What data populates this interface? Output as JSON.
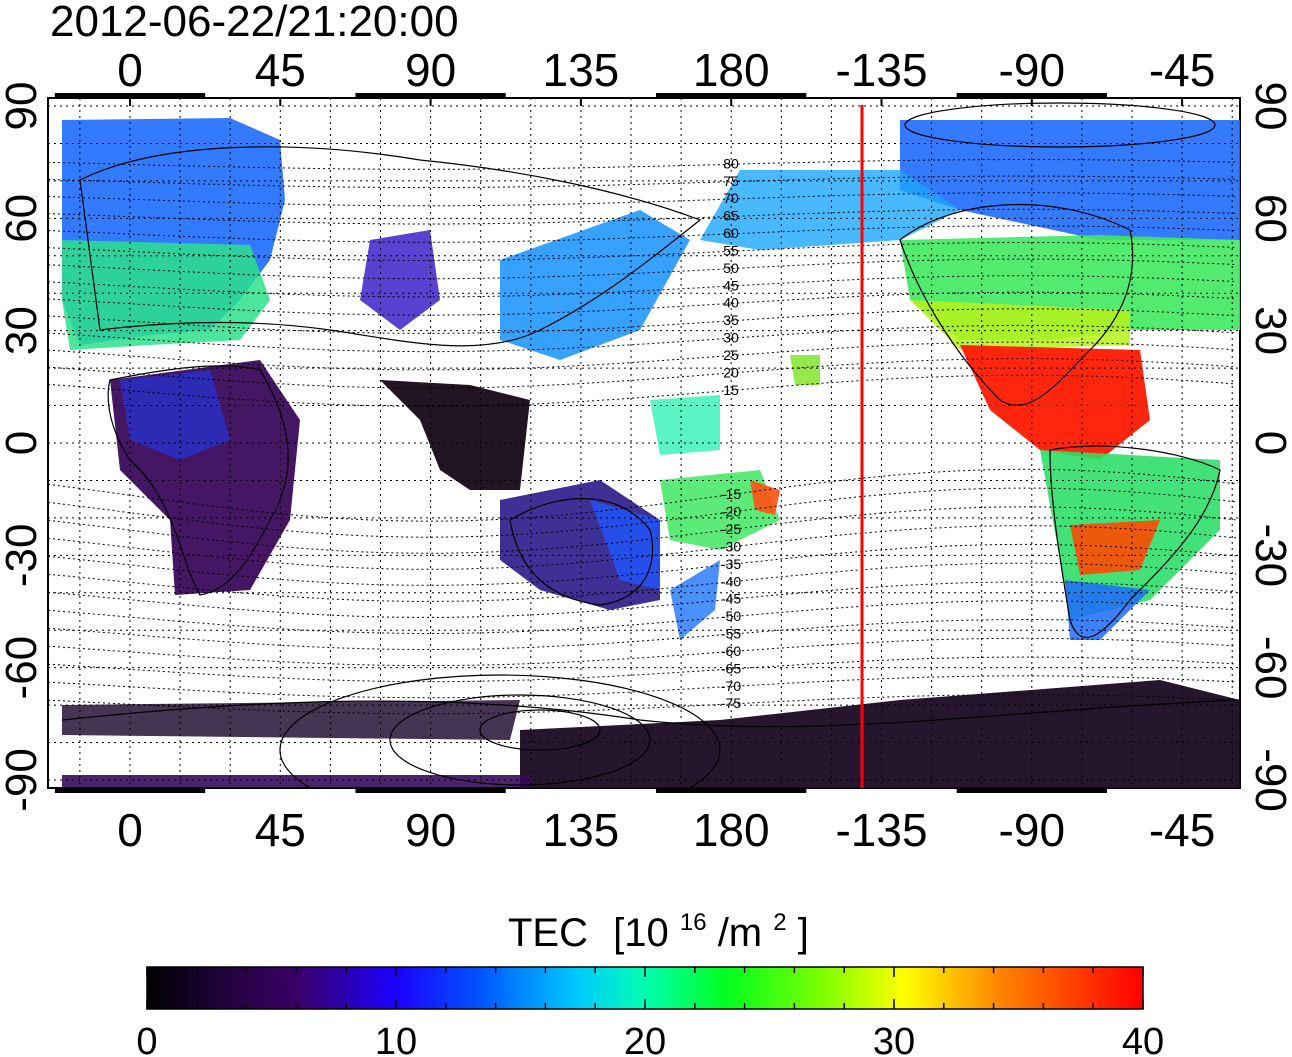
{
  "timestamp": "2012-06-22/21:20:00",
  "map": {
    "lon_ticks": [
      "0",
      "45",
      "90",
      "135",
      "180",
      "-135",
      "-90",
      "-45"
    ],
    "lat_ticks": [
      "90",
      "60",
      "30",
      "0",
      "-30",
      "-60",
      "-90"
    ],
    "contour_labels": [
      "80",
      "75",
      "70",
      "65",
      "60",
      "55",
      "50",
      "45",
      "40",
      "35",
      "30",
      "25",
      "20",
      "15",
      "-15",
      "-20",
      "-25",
      "-30",
      "-35",
      "-40",
      "-45",
      "-50",
      "-55",
      "-60",
      "-65",
      "-70",
      "-75"
    ],
    "terminator_longitude": -140,
    "terminator_color": "#ff0000"
  },
  "colorbar": {
    "title": "TEC",
    "unit_base": "[10",
    "unit_exp": "16",
    "unit_mid": "/m",
    "unit_exp2": "2",
    "unit_end": "]",
    "ticks": [
      "0",
      "10",
      "20",
      "30",
      "40"
    ],
    "range": [
      0,
      40
    ]
  }
}
